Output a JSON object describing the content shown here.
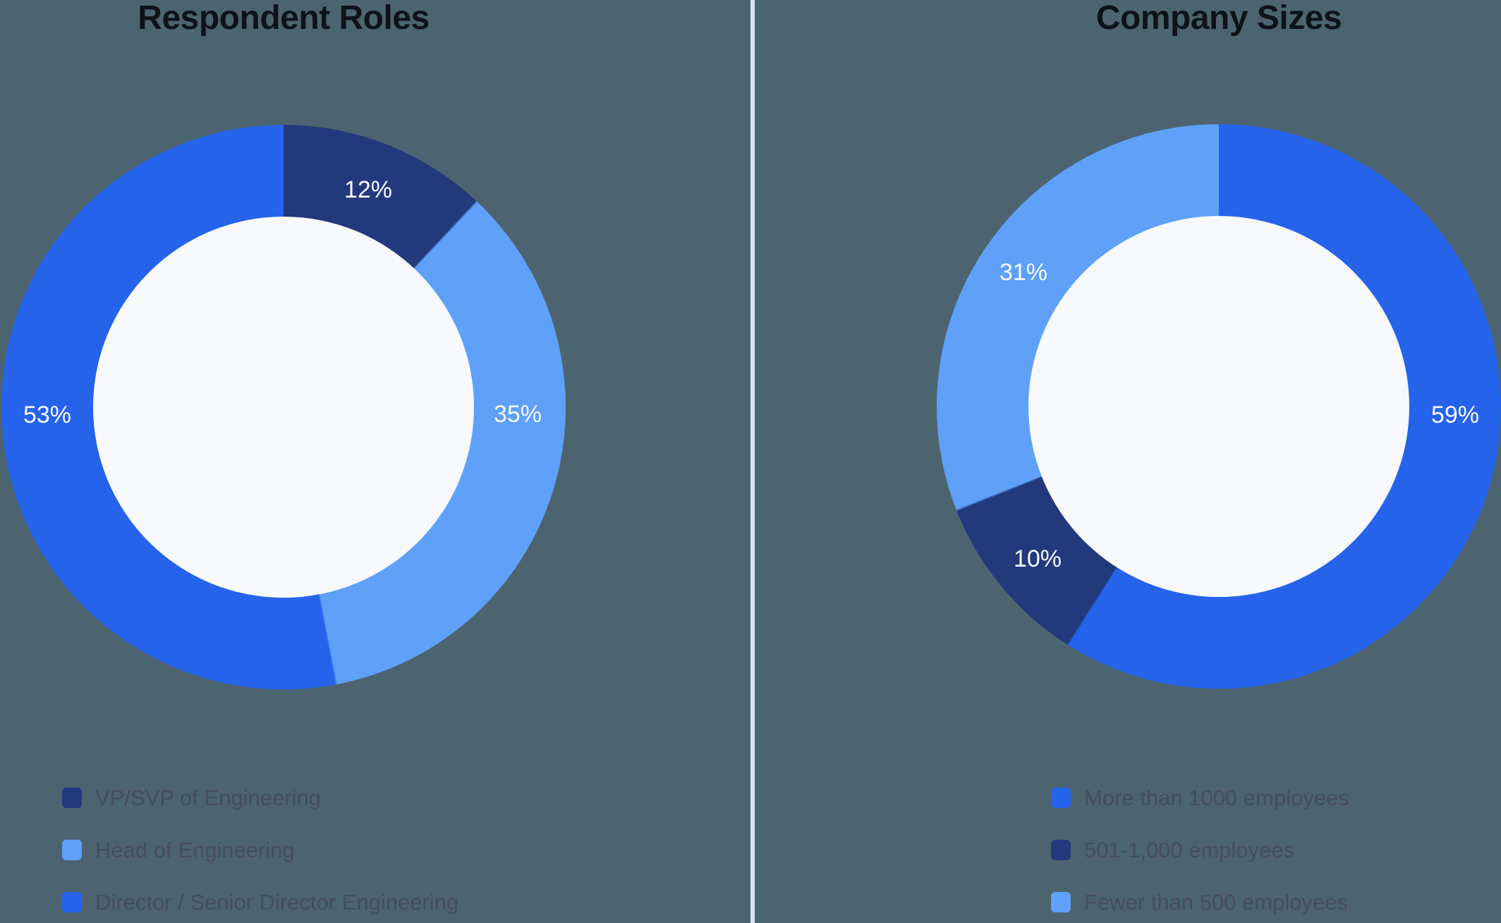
{
  "styles": {
    "background_color": "#4c6470",
    "divider_color": "#dde3ee",
    "hole_color": "#f7f9fc",
    "title_color": "#0d1319",
    "legend_text_color": "#474d61",
    "slice_label_color": "#f6f9fd"
  },
  "chart_data": [
    {
      "type": "pie",
      "variant": "donut",
      "title": "Respondent Roles",
      "start_angle_deg": 0,
      "direction": "clockwise",
      "legend_position": "bottom",
      "segments": [
        {
          "label": "VP/SVP of Engineering",
          "value_pct": 12,
          "display": "12%",
          "color": "#22397c"
        },
        {
          "label": "Head of Engineering",
          "value_pct": 35,
          "display": "35%",
          "color": "#5fa0f8"
        },
        {
          "label": "Director / Senior Director Engineering",
          "value_pct": 53,
          "display": "53%",
          "color": "#2563eb"
        }
      ]
    },
    {
      "type": "pie",
      "variant": "donut",
      "title": "Company Sizes",
      "start_angle_deg": 0,
      "direction": "clockwise",
      "legend_position": "bottom",
      "segments": [
        {
          "label": "More than 1000 employees",
          "value_pct": 59,
          "display": "59%",
          "color": "#2563eb"
        },
        {
          "label": "501-1,000 employees",
          "value_pct": 10,
          "display": "10%",
          "color": "#22397c"
        },
        {
          "label": "Fewer than 500 employees",
          "value_pct": 31,
          "display": "31%",
          "color": "#5fa0f8"
        }
      ]
    }
  ]
}
